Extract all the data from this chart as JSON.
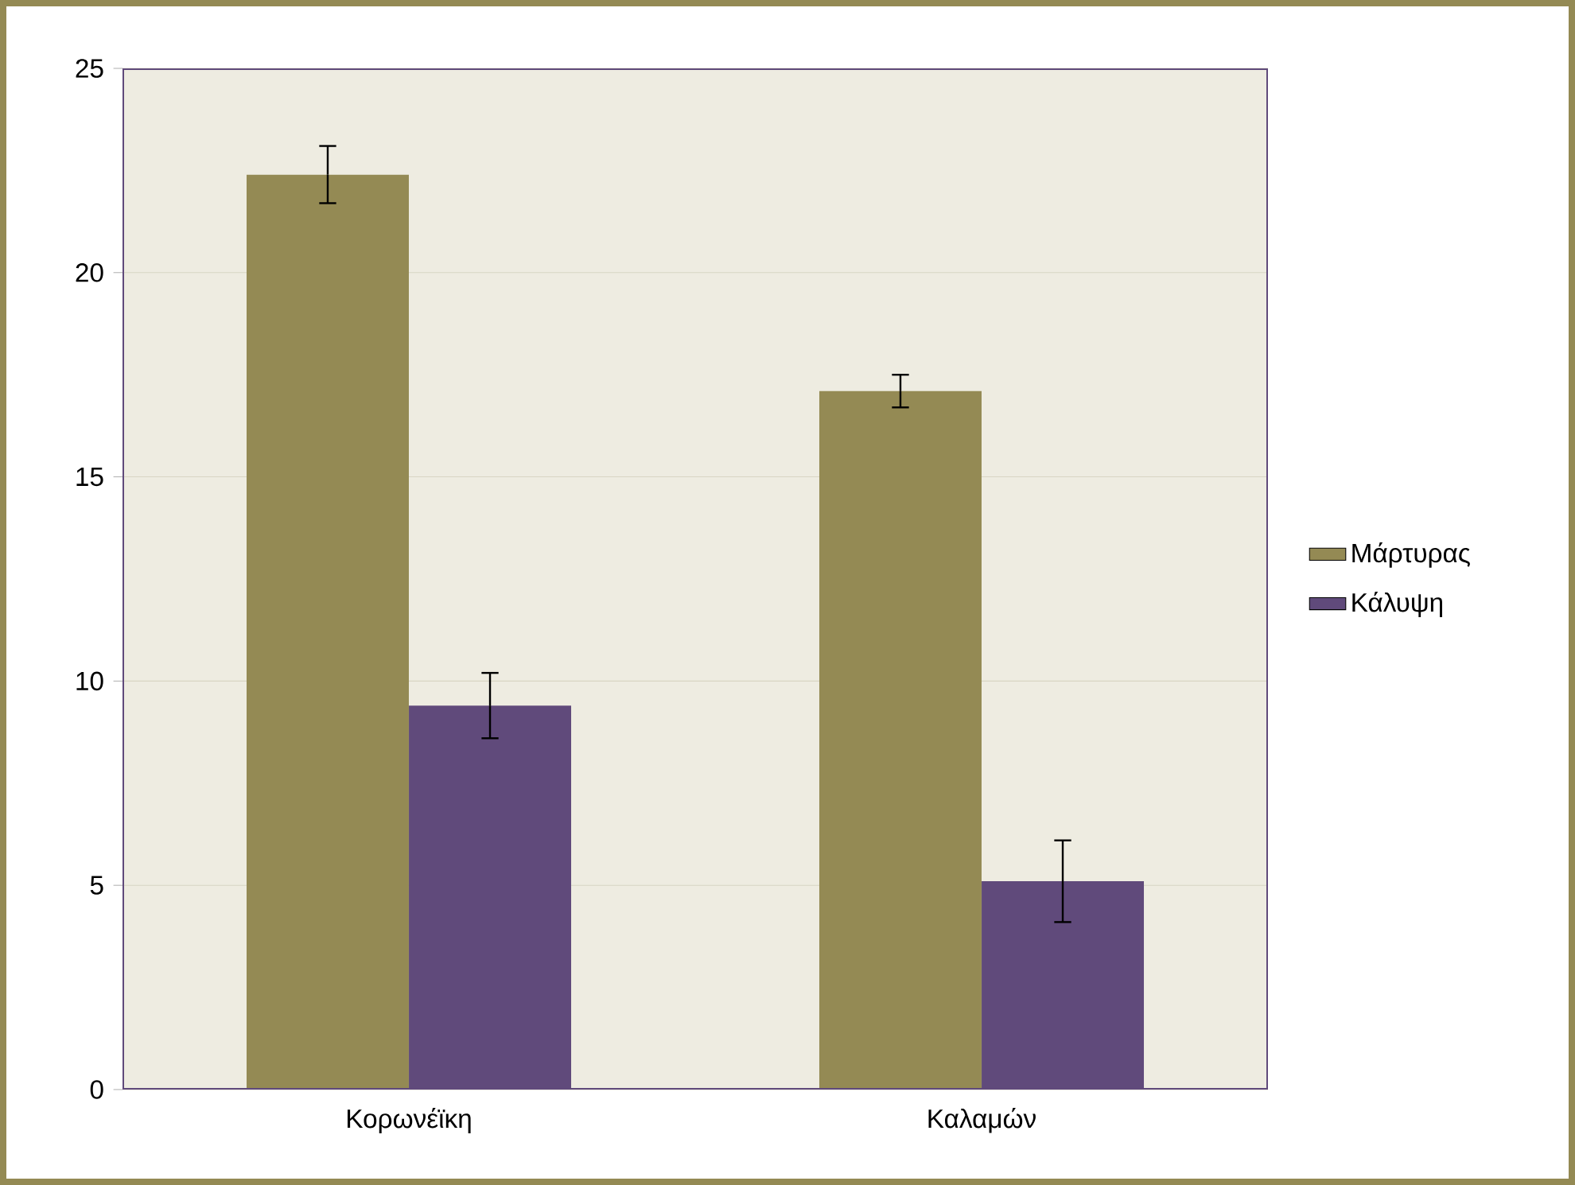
{
  "chart_data": {
    "type": "bar",
    "categories": [
      "Κορωνέϊκη",
      "Καλαμών"
    ],
    "series": [
      {
        "name": "Μάρτυρας",
        "color": "#948a54",
        "values": [
          22.4,
          17.1
        ],
        "errors": [
          0.7,
          0.4
        ]
      },
      {
        "name": "Κάλυψη",
        "color": "#604a7b",
        "values": [
          9.4,
          5.1
        ],
        "errors": [
          0.8,
          1.0
        ]
      }
    ],
    "ylim": [
      0,
      25
    ],
    "yticks": [
      0,
      5,
      10,
      15,
      20,
      25
    ],
    "grid": "y",
    "legend": "right"
  }
}
